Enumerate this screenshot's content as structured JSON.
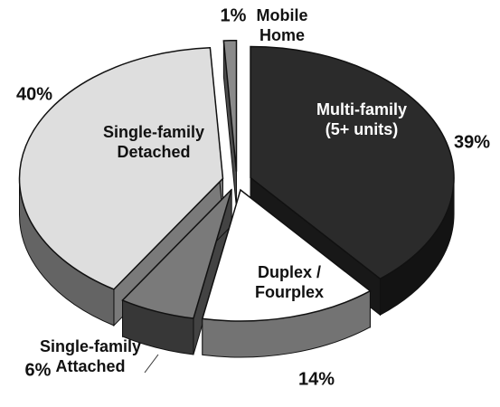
{
  "chart_data": {
    "type": "pie3d",
    "categories": [
      "Multi-family (5+ units)",
      "Duplex / Fourplex",
      "Single-family Attached",
      "Single-family Detached",
      "Mobile Home"
    ],
    "values": [
      39,
      14,
      6,
      40,
      1
    ],
    "value_labels": [
      "39%",
      "14%",
      "6%",
      "40%",
      "1%"
    ],
    "colors": [
      "#2b2b2b",
      "#ffffff",
      "#7a7a7a",
      "#dedede",
      "#8a8a8a"
    ],
    "label_colors": [
      "#ffffff",
      "#111111",
      "#111111",
      "#111111",
      "#111111"
    ]
  }
}
